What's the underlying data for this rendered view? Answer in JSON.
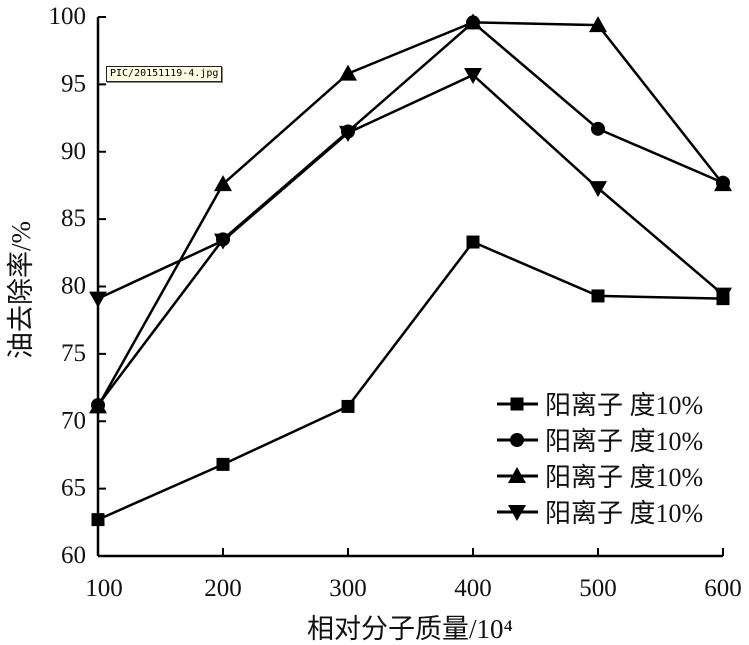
{
  "tooltip": "PIC/20151119-4.jpg",
  "chart_data": {
    "type": "line",
    "title": "",
    "xlabel": "相对分子质量/10⁴",
    "ylabel": "油去除率/%",
    "x": [
      100,
      200,
      300,
      400,
      500,
      600
    ],
    "xlim": [
      100,
      600
    ],
    "ylim": [
      60,
      100
    ],
    "xticks": [
      "100",
      "200",
      "300",
      "400",
      "500",
      "600"
    ],
    "yticks": [
      "60",
      "65",
      "70",
      "75",
      "80",
      "85",
      "90",
      "95",
      "100"
    ],
    "grid": false,
    "legend_position": "bottom-right",
    "series": [
      {
        "name": "阳离子 度10%",
        "marker": "square",
        "values": [
          62.7,
          66.8,
          71.1,
          83.3,
          79.3,
          79.1
        ]
      },
      {
        "name": "阳离子 度10%",
        "marker": "circle",
        "values": [
          71.2,
          83.5,
          91.5,
          99.6,
          91.7,
          87.7
        ]
      },
      {
        "name": "阳离子 度10%",
        "marker": "triangle-up",
        "values": [
          71.1,
          87.6,
          95.8,
          99.6,
          99.4,
          87.6
        ]
      },
      {
        "name": "阳离子 度10%",
        "marker": "triangle-down",
        "values": [
          79.1,
          83.4,
          91.4,
          95.7,
          87.3,
          79.4
        ]
      }
    ]
  }
}
